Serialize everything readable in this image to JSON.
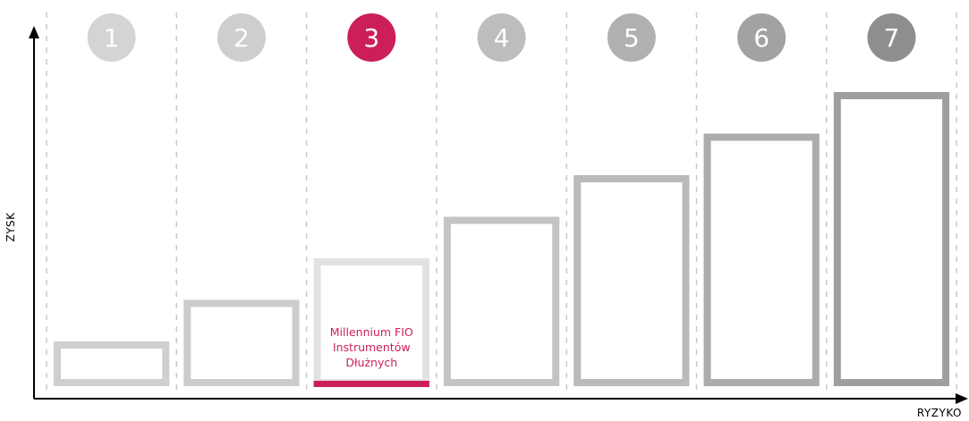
{
  "chart_data": {
    "type": "bar",
    "categories": [
      "1",
      "2",
      "3",
      "4",
      "5",
      "6",
      "7"
    ],
    "values": [
      1,
      2,
      3,
      4,
      5,
      6,
      7
    ],
    "highlighted_category": "3",
    "highlight_label": [
      "Millennium FIO",
      "Instrumentów",
      "Dłużnych"
    ],
    "xlabel": "RYZYKO",
    "ylabel": "ZYSK",
    "ylim": [
      0,
      7.5
    ],
    "grid": "dashed vertical separators",
    "colors": {
      "highlight": "#cc1f5a",
      "circles": [
        "#d4d4d4",
        "#cecece",
        "#cc1f5a",
        "#bdbdbd",
        "#b0b0b0",
        "#a2a2a2",
        "#8e8e8e"
      ],
      "bars": [
        "#cfcfcf",
        "#cccccc",
        "#cacaca",
        "#c4c4c4",
        "#bababa",
        "#acacac",
        "#9f9f9f"
      ],
      "axis": "#000000"
    }
  }
}
